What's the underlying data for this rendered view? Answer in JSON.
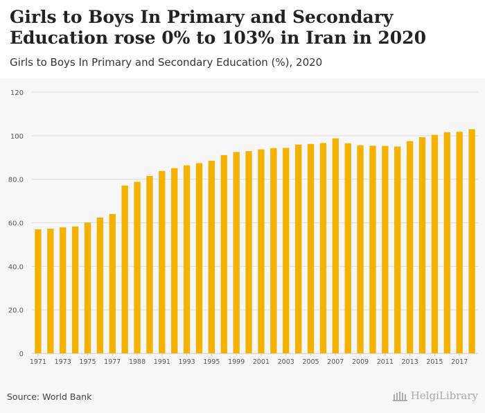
{
  "header": {
    "title": "Girls to Boys In Primary and Secondary Education rose 0% to 103% in Iran in 2020",
    "subtitle": "Girls to Boys In Primary and Secondary Education (%), 2020"
  },
  "footer": {
    "source": "Source: World Bank",
    "brand": "HelgiLibrary"
  },
  "colors": {
    "bar": "#f5b100",
    "grid": "#dddddd",
    "axis": "#cccccc",
    "tick_text": "#555555"
  },
  "chart_data": {
    "type": "bar",
    "title": "Girls to Boys In Primary and Secondary Education (%), 2020",
    "xlabel": "",
    "ylabel": "",
    "ylim": [
      0,
      120
    ],
    "yticks": [
      "0",
      "20.0",
      "40.0",
      "60.0",
      "80.0",
      "100",
      "120"
    ],
    "ytick_values": [
      0,
      20,
      40,
      60,
      80,
      100,
      120
    ],
    "categories": [
      "1971",
      "1972",
      "1973",
      "1974",
      "1975",
      "1976",
      "1977",
      "1978",
      "1988",
      "1989",
      "1991",
      "1992",
      "1993",
      "1994",
      "1995",
      "1996",
      "1999",
      "2000",
      "2001",
      "2002",
      "2003",
      "2004",
      "2005",
      "2006",
      "2007",
      "2008",
      "2009",
      "2010",
      "2011",
      "2012",
      "2013",
      "2014",
      "2015",
      "2016",
      "2017",
      "2018"
    ],
    "xtick_labels": [
      "1971",
      "1973",
      "1975",
      "1977",
      "1988",
      "1991",
      "1993",
      "1995",
      "1999",
      "2001",
      "2003",
      "2005",
      "2007",
      "2009",
      "2011",
      "2013",
      "2015",
      "2017"
    ],
    "values": [
      57.0,
      57.3,
      57.9,
      58.3,
      60.1,
      62.4,
      64.0,
      77.1,
      78.8,
      81.5,
      83.8,
      85.1,
      86.4,
      87.4,
      88.5,
      91.1,
      92.5,
      92.9,
      93.7,
      94.3,
      94.4,
      95.9,
      96.2,
      96.6,
      98.8,
      96.5,
      95.6,
      95.4,
      95.3,
      95.0,
      97.5,
      99.3,
      100.4,
      101.6,
      101.8,
      103.0
    ]
  }
}
